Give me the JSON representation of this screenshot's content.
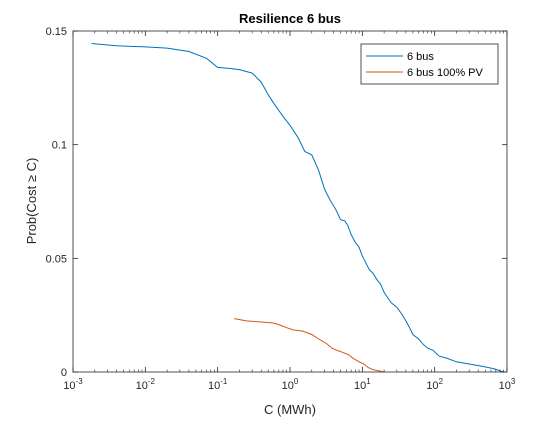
{
  "chart_data": {
    "type": "line",
    "title": "Resilience 6 bus",
    "xlabel": "C (MWh)",
    "ylabel": "Prob(Cost ≥ C)",
    "xscale": "log",
    "xlim": [
      0.001,
      1000
    ],
    "ylim": [
      0,
      0.15
    ],
    "x_ticks": [
      {
        "value": 0.001,
        "base": "10",
        "exp": "-3"
      },
      {
        "value": 0.01,
        "base": "10",
        "exp": "-2"
      },
      {
        "value": 0.1,
        "base": "10",
        "exp": "-1"
      },
      {
        "value": 1,
        "base": "10",
        "exp": "0"
      },
      {
        "value": 10,
        "base": "10",
        "exp": "1"
      },
      {
        "value": 100,
        "base": "10",
        "exp": "2"
      },
      {
        "value": 1000,
        "base": "10",
        "exp": "3"
      }
    ],
    "y_ticks": [
      {
        "value": 0,
        "label": "0"
      },
      {
        "value": 0.05,
        "label": "0.05"
      },
      {
        "value": 0.1,
        "label": "0.1"
      },
      {
        "value": 0.15,
        "label": "0.15"
      }
    ],
    "grid": false,
    "legend_position": "top-right",
    "series": [
      {
        "name": "6 bus",
        "color": "#0072BD",
        "points": [
          [
            0.0018,
            0.1445
          ],
          [
            0.004,
            0.1435
          ],
          [
            0.01,
            0.143
          ],
          [
            0.02,
            0.1425
          ],
          [
            0.04,
            0.141
          ],
          [
            0.07,
            0.138
          ],
          [
            0.1,
            0.134
          ],
          [
            0.15,
            0.1335
          ],
          [
            0.2,
            0.133
          ],
          [
            0.3,
            0.1315
          ],
          [
            0.4,
            0.1275
          ],
          [
            0.5,
            0.122
          ],
          [
            0.6,
            0.118
          ],
          [
            0.8,
            0.1125
          ],
          [
            1.0,
            0.1085
          ],
          [
            1.3,
            0.103
          ],
          [
            1.6,
            0.097
          ],
          [
            2.0,
            0.0955
          ],
          [
            2.5,
            0.0885
          ],
          [
            3.0,
            0.0805
          ],
          [
            3.6,
            0.0755
          ],
          [
            4.3,
            0.0715
          ],
          [
            5.0,
            0.067
          ],
          [
            5.7,
            0.0665
          ],
          [
            6.3,
            0.0645
          ],
          [
            7.0,
            0.0605
          ],
          [
            8.0,
            0.057
          ],
          [
            9.0,
            0.055
          ],
          [
            10.0,
            0.051
          ],
          [
            11.0,
            0.0485
          ],
          [
            12.5,
            0.045
          ],
          [
            14.0,
            0.0435
          ],
          [
            16.0,
            0.0405
          ],
          [
            18.0,
            0.0385
          ],
          [
            20.0,
            0.035
          ],
          [
            25.0,
            0.0305
          ],
          [
            30.0,
            0.0285
          ],
          [
            35.0,
            0.0255
          ],
          [
            40.0,
            0.0225
          ],
          [
            45.0,
            0.0195
          ],
          [
            50.0,
            0.0165
          ],
          [
            60.0,
            0.0145
          ],
          [
            70.0,
            0.012
          ],
          [
            80.0,
            0.0105
          ],
          [
            95.0,
            0.0095
          ],
          [
            115.0,
            0.007
          ],
          [
            150.0,
            0.006
          ],
          [
            200.0,
            0.0045
          ],
          [
            300.0,
            0.0035
          ],
          [
            450.0,
            0.0025
          ],
          [
            650.0,
            0.0015
          ],
          [
            900.0,
            0.0
          ]
        ]
      },
      {
        "name": "6 bus 100% PV",
        "color": "#D95319",
        "points": [
          [
            0.17,
            0.0235
          ],
          [
            0.25,
            0.0225
          ],
          [
            0.4,
            0.022
          ],
          [
            0.6,
            0.0215
          ],
          [
            0.75,
            0.0205
          ],
          [
            0.9,
            0.0195
          ],
          [
            1.1,
            0.0185
          ],
          [
            1.5,
            0.018
          ],
          [
            2.0,
            0.0165
          ],
          [
            2.5,
            0.0145
          ],
          [
            3.2,
            0.0125
          ],
          [
            3.8,
            0.0105
          ],
          [
            4.5,
            0.0095
          ],
          [
            5.5,
            0.0085
          ],
          [
            6.5,
            0.0075
          ],
          [
            7.5,
            0.006
          ],
          [
            9.0,
            0.0045
          ],
          [
            10.5,
            0.0035
          ],
          [
            12.0,
            0.002
          ],
          [
            14.0,
            0.001
          ],
          [
            17.0,
            0.0005
          ],
          [
            20.0,
            0.0
          ]
        ]
      }
    ]
  }
}
